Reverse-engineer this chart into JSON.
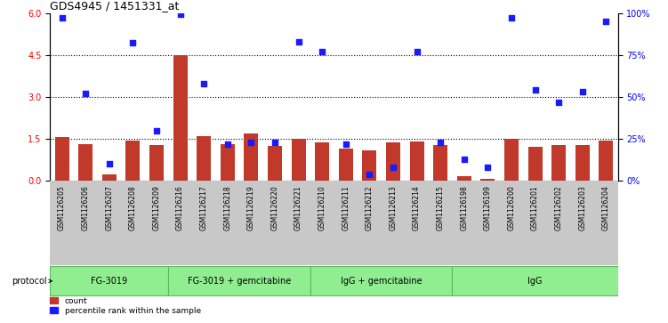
{
  "title": "GDS4945 / 1451331_at",
  "samples": [
    "GSM1126205",
    "GSM1126206",
    "GSM1126207",
    "GSM1126208",
    "GSM1126209",
    "GSM1126216",
    "GSM1126217",
    "GSM1126218",
    "GSM1126219",
    "GSM1126220",
    "GSM1126221",
    "GSM1126210",
    "GSM1126211",
    "GSM1126212",
    "GSM1126213",
    "GSM1126214",
    "GSM1126215",
    "GSM1126198",
    "GSM1126199",
    "GSM1126200",
    "GSM1126201",
    "GSM1126202",
    "GSM1126203",
    "GSM1126204"
  ],
  "counts": [
    1.58,
    1.3,
    0.22,
    1.45,
    1.28,
    4.5,
    1.6,
    1.3,
    1.7,
    1.25,
    1.5,
    1.38,
    1.15,
    1.1,
    1.38,
    1.42,
    1.27,
    0.18,
    0.08,
    1.5,
    1.22,
    1.28,
    1.28,
    1.45
  ],
  "percentiles": [
    97,
    52,
    10,
    82,
    30,
    99,
    58,
    22,
    23,
    23,
    83,
    77,
    22,
    4,
    8,
    77,
    23,
    13,
    8,
    97,
    54,
    47,
    53,
    95
  ],
  "groups": [
    {
      "label": "FG-3019",
      "start": 0,
      "end": 5
    },
    {
      "label": "FG-3019 + gemcitabine",
      "start": 5,
      "end": 11
    },
    {
      "label": "IgG + gemcitabine",
      "start": 11,
      "end": 17
    },
    {
      "label": "IgG",
      "start": 17,
      "end": 24
    }
  ],
  "ylim_left": [
    0,
    6
  ],
  "ylim_right": [
    0,
    100
  ],
  "yticks_left": [
    0,
    1.5,
    3.0,
    4.5,
    6.0
  ],
  "yticks_right": [
    0,
    25,
    50,
    75,
    100
  ],
  "bar_color": "#C0392B",
  "dot_color": "#1a1aff",
  "group_fill": "#90EE90",
  "group_edge": "#5cb85c",
  "tick_bg": "#C8C8C8",
  "protocol_label": "protocol"
}
